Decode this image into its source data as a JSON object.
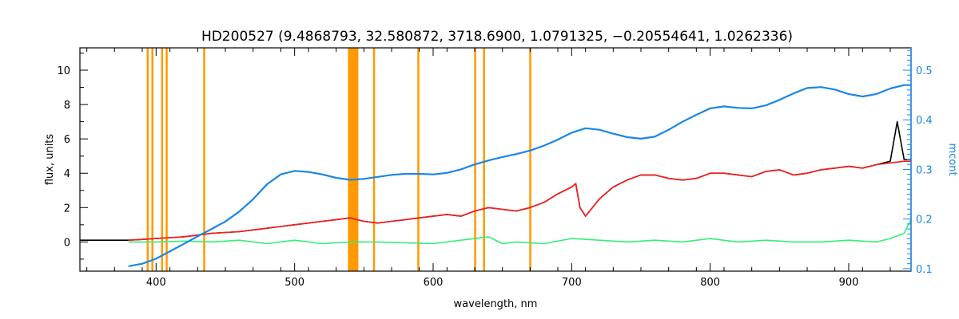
{
  "chart_data": {
    "type": "line",
    "title": "HD200527    (9.4868793, 32.580872, 3718.6900, 1.0791325, −0.20554641, 1.0262336)",
    "xlabel": "wavelength, nm",
    "ylabel": "flux, units",
    "y2label": "mcont",
    "xlim": [
      345,
      945
    ],
    "ylim": [
      -1.7,
      11.3
    ],
    "y2lim": [
      0.095,
      0.545
    ],
    "xticks": [
      400,
      500,
      600,
      700,
      800,
      900
    ],
    "yticks": [
      0,
      2,
      4,
      6,
      8,
      10
    ],
    "y2ticks": [
      0.1,
      0.2,
      0.3,
      0.4,
      0.5
    ],
    "grid": false,
    "colors": {
      "observed": "#000000",
      "model": "#ff1a1a",
      "residual": "#33ee77",
      "mcont": "#1a86e6",
      "masked": "#ff9900",
      "right_axis": "#1a86e6"
    },
    "masked_regions": [
      [
        393.2,
        393.8
      ],
      [
        396.6,
        397.2
      ],
      [
        403.6,
        404.6
      ],
      [
        406.9,
        407.5
      ],
      [
        434.0,
        434.8
      ],
      [
        538.5,
        546.0
      ],
      [
        556.6,
        557.2
      ],
      [
        588.6,
        589.9
      ],
      [
        629.6,
        630.4
      ],
      [
        636.0,
        636.6
      ],
      [
        669.4,
        670.2
      ]
    ],
    "series": [
      {
        "id": "observed",
        "x": [
          345,
          360,
          380,
          390,
          400,
          410,
          420,
          430,
          440,
          450,
          460,
          470,
          480,
          490,
          500,
          510,
          520,
          530,
          540,
          545,
          550,
          560,
          570,
          580,
          590,
          600,
          610,
          620,
          630,
          640,
          650,
          660,
          670,
          680,
          690,
          700,
          703,
          706,
          710,
          720,
          730,
          740,
          750,
          760,
          770,
          780,
          790,
          800,
          810,
          820,
          830,
          840,
          850,
          860,
          870,
          880,
          890,
          900,
          910,
          920,
          930,
          935,
          940,
          945
        ],
        "y": [
          0.1,
          0.1,
          0.1,
          0.15,
          0.2,
          0.25,
          0.3,
          0.4,
          0.5,
          0.55,
          0.6,
          0.7,
          0.8,
          0.9,
          1.0,
          1.1,
          1.2,
          1.3,
          1.4,
          1.3,
          1.2,
          1.1,
          1.2,
          1.3,
          1.4,
          1.5,
          1.6,
          1.5,
          1.8,
          2.0,
          1.9,
          1.8,
          2.0,
          2.3,
          2.8,
          3.2,
          3.4,
          2.0,
          1.5,
          2.5,
          3.2,
          3.6,
          3.9,
          3.9,
          3.7,
          3.6,
          3.7,
          4.0,
          4.0,
          3.9,
          3.8,
          4.1,
          4.2,
          3.9,
          4.0,
          4.2,
          4.3,
          4.4,
          4.3,
          4.5,
          4.7,
          7.0,
          4.8,
          4.8
        ]
      },
      {
        "id": "model",
        "x": [
          380,
          390,
          400,
          410,
          420,
          430,
          440,
          450,
          460,
          470,
          480,
          490,
          500,
          510,
          520,
          530,
          540,
          545,
          550,
          560,
          570,
          580,
          590,
          600,
          610,
          620,
          630,
          640,
          650,
          660,
          670,
          680,
          690,
          700,
          703,
          706,
          710,
          720,
          730,
          740,
          750,
          760,
          770,
          780,
          790,
          800,
          810,
          820,
          830,
          840,
          850,
          860,
          870,
          880,
          890,
          900,
          910,
          920,
          930,
          940,
          945
        ],
        "y": [
          0.1,
          0.15,
          0.2,
          0.25,
          0.3,
          0.4,
          0.5,
          0.55,
          0.6,
          0.7,
          0.8,
          0.9,
          1.0,
          1.1,
          1.2,
          1.3,
          1.4,
          1.3,
          1.2,
          1.1,
          1.2,
          1.3,
          1.4,
          1.5,
          1.6,
          1.5,
          1.8,
          2.0,
          1.9,
          1.8,
          2.0,
          2.3,
          2.8,
          3.2,
          3.4,
          2.0,
          1.5,
          2.5,
          3.2,
          3.6,
          3.9,
          3.9,
          3.7,
          3.6,
          3.7,
          4.0,
          4.0,
          3.9,
          3.8,
          4.1,
          4.2,
          3.9,
          4.0,
          4.2,
          4.3,
          4.4,
          4.3,
          4.5,
          4.6,
          4.7,
          4.7
        ]
      },
      {
        "id": "residual",
        "x": [
          380,
          400,
          420,
          440,
          460,
          480,
          500,
          520,
          540,
          560,
          580,
          600,
          620,
          640,
          650,
          660,
          680,
          700,
          720,
          740,
          760,
          780,
          800,
          820,
          840,
          860,
          880,
          900,
          920,
          930,
          940,
          945
        ],
        "y": [
          0.0,
          0.0,
          0.05,
          0.0,
          0.1,
          -0.1,
          0.1,
          -0.1,
          0.0,
          0.0,
          -0.05,
          -0.1,
          0.1,
          0.3,
          -0.1,
          0.0,
          -0.1,
          0.2,
          0.1,
          0.0,
          0.1,
          0.0,
          0.2,
          0.0,
          0.1,
          0.0,
          0.0,
          0.1,
          0.0,
          0.2,
          0.5,
          1.3
        ]
      },
      {
        "id": "mcont",
        "axis": "right",
        "x": [
          380,
          390,
          400,
          410,
          420,
          430,
          440,
          450,
          460,
          470,
          480,
          490,
          500,
          510,
          520,
          530,
          540,
          550,
          560,
          570,
          580,
          590,
          600,
          610,
          620,
          630,
          640,
          650,
          660,
          670,
          680,
          690,
          700,
          710,
          720,
          730,
          740,
          750,
          760,
          770,
          780,
          790,
          800,
          810,
          820,
          830,
          840,
          850,
          860,
          870,
          880,
          890,
          900,
          910,
          920,
          930,
          940,
          945
        ],
        "y": [
          0.105,
          0.11,
          0.12,
          0.135,
          0.15,
          0.165,
          0.18,
          0.195,
          0.215,
          0.24,
          0.27,
          0.29,
          0.297,
          0.295,
          0.29,
          0.283,
          0.279,
          0.281,
          0.285,
          0.289,
          0.291,
          0.291,
          0.29,
          0.293,
          0.3,
          0.31,
          0.318,
          0.325,
          0.331,
          0.338,
          0.348,
          0.36,
          0.374,
          0.383,
          0.38,
          0.372,
          0.365,
          0.362,
          0.366,
          0.38,
          0.396,
          0.41,
          0.423,
          0.427,
          0.424,
          0.423,
          0.429,
          0.44,
          0.453,
          0.464,
          0.466,
          0.461,
          0.452,
          0.447,
          0.452,
          0.463,
          0.47,
          0.47
        ]
      }
    ]
  }
}
